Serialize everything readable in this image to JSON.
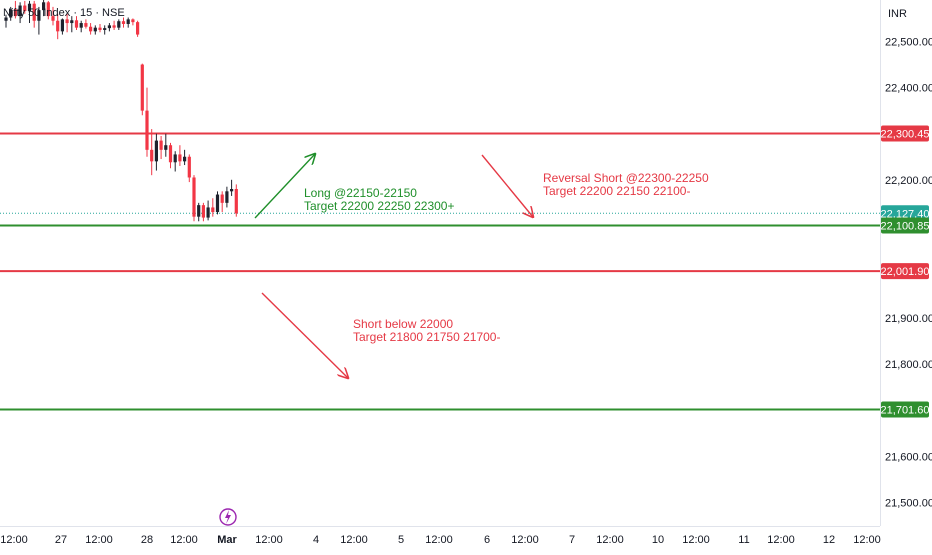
{
  "header": {
    "symbol_title": "Nifty 50 Index · 15 · NSE",
    "currency": "INR"
  },
  "colors": {
    "up": "#089981",
    "down": "#f23645",
    "candle_dark": "#1e222d",
    "resistance": "#e53945",
    "support": "#2f8f2f",
    "annot_green": "#1f8f2a",
    "annot_red": "#e53945",
    "last_price": "#26a69a",
    "axis_text": "#131722",
    "border": "#e0e3eb",
    "logo": "#9c27b0"
  },
  "chart_data": {
    "type": "candlestick",
    "y_axis": {
      "ylim": [
        21449,
        22590
      ],
      "ticks": [
        22500,
        22400,
        22200,
        21900,
        21800,
        21600,
        21500
      ],
      "tick_labels": [
        "22,500.00",
        "22,400.00",
        "22,200.00",
        "21,900.00",
        "21,800.00",
        "21,600.00",
        "21,500.00"
      ]
    },
    "x_axis": {
      "tick_labels": [
        "12:00",
        "27",
        "12:00",
        "28",
        "12:00",
        "Mar",
        "12:00",
        "4",
        "12:00",
        "5",
        "12:00",
        "6",
        "12:00",
        "7",
        "12:00",
        "10",
        "12:00",
        "11",
        "12:00",
        "12",
        "12:00"
      ],
      "bold_labels": [
        "Mar"
      ]
    },
    "candles": [
      [
        22545,
        22558,
        22530,
        22552
      ],
      [
        22552,
        22575,
        22545,
        22570
      ],
      [
        22570,
        22588,
        22550,
        22555
      ],
      [
        22555,
        22585,
        22540,
        22578
      ],
      [
        22578,
        22588,
        22560,
        22566
      ],
      [
        22566,
        22588,
        22540,
        22582
      ],
      [
        22582,
        22588,
        22530,
        22545
      ],
      [
        22545,
        22575,
        22515,
        22568
      ],
      [
        22568,
        22590,
        22555,
        22585
      ],
      [
        22585,
        22588,
        22548,
        22555
      ],
      [
        22555,
        22575,
        22535,
        22545
      ],
      [
        22545,
        22560,
        22505,
        22522
      ],
      [
        22522,
        22550,
        22515,
        22548
      ],
      [
        22548,
        22560,
        22520,
        22540
      ],
      [
        22540,
        22555,
        22520,
        22546
      ],
      [
        22546,
        22555,
        22525,
        22530
      ],
      [
        22530,
        22545,
        22520,
        22540
      ],
      [
        22540,
        22548,
        22528,
        22532
      ],
      [
        22532,
        22540,
        22515,
        22522
      ],
      [
        22522,
        22535,
        22515,
        22530
      ],
      [
        22530,
        22538,
        22520,
        22525
      ],
      [
        22525,
        22535,
        22515,
        22529
      ],
      [
        22529,
        22540,
        22522,
        22535
      ],
      [
        22535,
        22545,
        22525,
        22530
      ],
      [
        22530,
        22548,
        22525,
        22544
      ],
      [
        22544,
        22552,
        22530,
        22538
      ],
      [
        22538,
        22552,
        22530,
        22548
      ],
      [
        22548,
        22550,
        22535,
        22542
      ],
      [
        22542,
        22545,
        22510,
        22515
      ],
      [
        22450,
        22452,
        22340,
        22350
      ],
      [
        22350,
        22400,
        22250,
        22265
      ],
      [
        22265,
        22310,
        22210,
        22240
      ],
      [
        22240,
        22300,
        22220,
        22285
      ],
      [
        22285,
        22295,
        22245,
        22265
      ],
      [
        22265,
        22300,
        22250,
        22275
      ],
      [
        22275,
        22280,
        22225,
        22238
      ],
      [
        22238,
        22262,
        22218,
        22255
      ],
      [
        22255,
        22275,
        22230,
        22240
      ],
      [
        22240,
        22265,
        22232,
        22250
      ],
      [
        22250,
        22255,
        22195,
        22205
      ],
      [
        22205,
        22210,
        22110,
        22120
      ],
      [
        22120,
        22150,
        22110,
        22145
      ],
      [
        22145,
        22150,
        22110,
        22118
      ],
      [
        22118,
        22155,
        22112,
        22140
      ],
      [
        22140,
        22160,
        22120,
        22130
      ],
      [
        22130,
        22175,
        22125,
        22168
      ],
      [
        22168,
        22175,
        22130,
        22150
      ],
      [
        22150,
        22185,
        22140,
        22175
      ],
      [
        22175,
        22200,
        22165,
        22180
      ],
      [
        22180,
        22190,
        22120,
        22127
      ]
    ],
    "levels": [
      {
        "label": "22,300.45",
        "value": 22300.45,
        "color": "resistance"
      },
      {
        "label": "22,127.40",
        "value": 22127.4,
        "color": "last_price",
        "style": "dotted"
      },
      {
        "label": "22,100.85",
        "value": 22100.85,
        "color": "support"
      },
      {
        "label": "22,001.90",
        "value": 22001.9,
        "color": "resistance"
      },
      {
        "label": "21,701.60",
        "value": 21701.6,
        "color": "support"
      }
    ],
    "annotations": [
      {
        "lines": [
          "Long @22150-22150",
          "Target 22200 22250 22300+"
        ],
        "color": "annot_green"
      },
      {
        "lines": [
          "Reversal Short @22300-22250",
          "Target 22200 22150 22100-"
        ],
        "color": "annot_red"
      },
      {
        "lines": [
          "Short below 22000",
          "Target 21800 21750 21700-"
        ],
        "color": "annot_red"
      }
    ],
    "arrows": [
      {
        "direction": "up",
        "color": "annot_green"
      },
      {
        "direction": "down",
        "color": "annot_red"
      },
      {
        "direction": "down",
        "color": "annot_red"
      }
    ]
  },
  "logo": {
    "icon": "lightning-bolt-icon"
  }
}
